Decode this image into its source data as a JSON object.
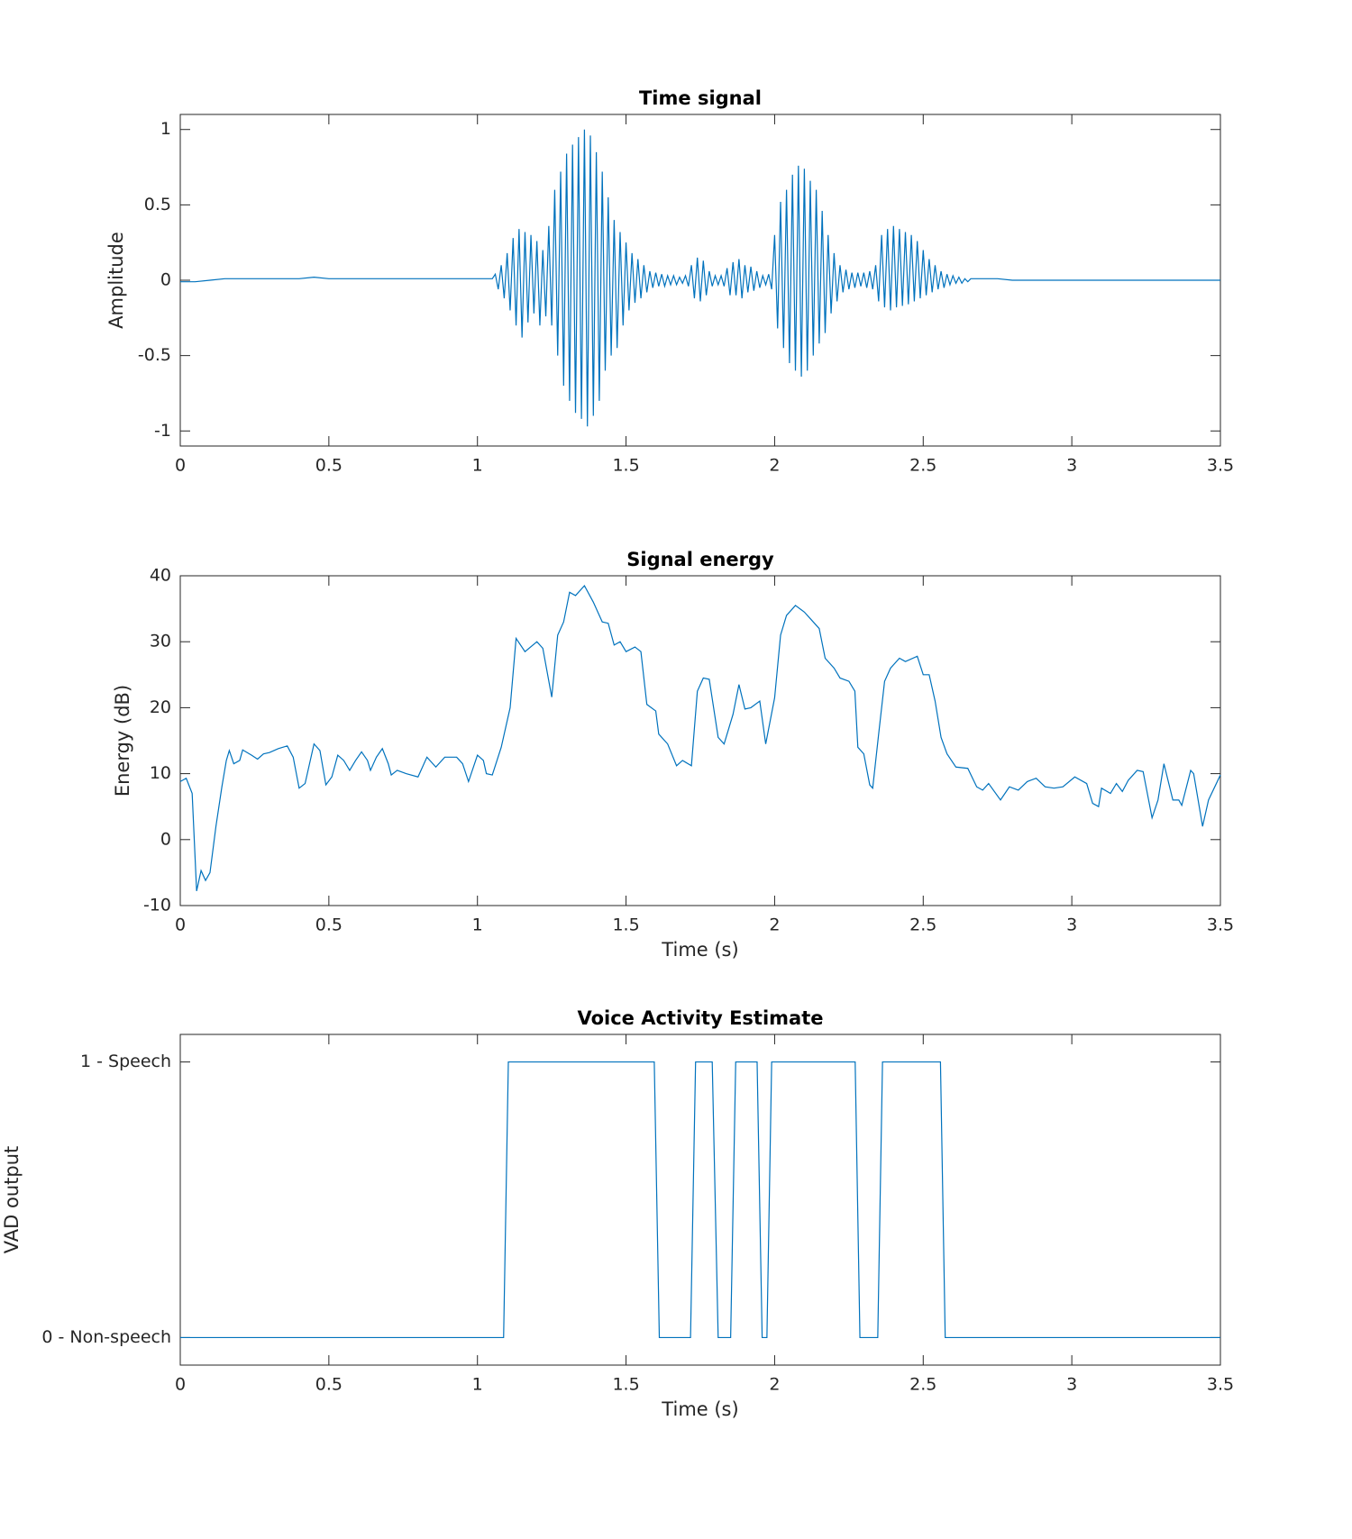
{
  "chart_data": [
    {
      "type": "line",
      "title": "Time signal",
      "ylabel": "Amplitude",
      "color": "#0072bd",
      "xlim": [
        0,
        3.5
      ],
      "xticks": [
        0,
        0.5,
        1,
        1.5,
        2,
        2.5,
        3,
        3.5
      ],
      "ylim": [
        -1.1,
        1.1
      ],
      "yticks": [
        -1,
        -0.5,
        0,
        0.5,
        1
      ],
      "x": [
        0,
        0.05,
        0.1,
        0.15,
        0.2,
        0.25,
        0.3,
        0.35,
        0.4,
        0.45,
        0.5,
        0.55,
        0.6,
        0.65,
        0.7,
        0.75,
        0.8,
        0.85,
        0.9,
        0.95,
        1,
        1.05,
        1.06,
        1.07,
        1.08,
        1.09,
        1.1,
        1.11,
        1.12,
        1.13,
        1.14,
        1.15,
        1.16,
        1.17,
        1.18,
        1.19,
        1.2,
        1.21,
        1.22,
        1.23,
        1.24,
        1.25,
        1.26,
        1.27,
        1.28,
        1.29,
        1.3,
        1.31,
        1.32,
        1.33,
        1.34,
        1.35,
        1.36,
        1.37,
        1.38,
        1.39,
        1.4,
        1.41,
        1.42,
        1.43,
        1.44,
        1.45,
        1.46,
        1.47,
        1.48,
        1.49,
        1.5,
        1.51,
        1.52,
        1.53,
        1.54,
        1.55,
        1.56,
        1.57,
        1.58,
        1.59,
        1.6,
        1.61,
        1.62,
        1.63,
        1.64,
        1.65,
        1.66,
        1.67,
        1.68,
        1.69,
        1.7,
        1.71,
        1.72,
        1.73,
        1.74,
        1.75,
        1.76,
        1.77,
        1.78,
        1.79,
        1.8,
        1.81,
        1.82,
        1.83,
        1.84,
        1.85,
        1.86,
        1.87,
        1.88,
        1.89,
        1.9,
        1.91,
        1.92,
        1.93,
        1.94,
        1.95,
        1.96,
        1.97,
        1.98,
        1.99,
        2,
        2.01,
        2.02,
        2.03,
        2.04,
        2.05,
        2.06,
        2.07,
        2.08,
        2.09,
        2.1,
        2.11,
        2.12,
        2.13,
        2.14,
        2.15,
        2.16,
        2.17,
        2.18,
        2.19,
        2.2,
        2.21,
        2.22,
        2.23,
        2.24,
        2.25,
        2.26,
        2.27,
        2.28,
        2.29,
        2.3,
        2.31,
        2.32,
        2.33,
        2.34,
        2.35,
        2.36,
        2.37,
        2.38,
        2.39,
        2.4,
        2.41,
        2.42,
        2.43,
        2.44,
        2.45,
        2.46,
        2.47,
        2.48,
        2.49,
        2.5,
        2.51,
        2.52,
        2.53,
        2.54,
        2.55,
        2.56,
        2.57,
        2.58,
        2.59,
        2.6,
        2.61,
        2.62,
        2.63,
        2.64,
        2.65,
        2.66,
        2.7,
        2.75,
        2.8,
        2.85,
        2.9,
        2.95,
        3,
        3.05,
        3.1,
        3.15,
        3.2,
        3.25,
        3.3,
        3.35,
        3.4,
        3.45,
        3.5
      ],
      "values": [
        -0.01,
        -0.01,
        0,
        0.01,
        0.01,
        0.01,
        0.01,
        0.01,
        0.01,
        0.02,
        0.01,
        0.01,
        0.01,
        0.01,
        0.01,
        0.01,
        0.01,
        0.01,
        0.01,
        0.01,
        0.01,
        0.01,
        0.04,
        -0.06,
        0.1,
        -0.12,
        0.18,
        -0.2,
        0.28,
        -0.3,
        0.34,
        -0.38,
        0.32,
        -0.28,
        0.3,
        -0.22,
        0.26,
        -0.3,
        0.2,
        -0.24,
        0.36,
        -0.3,
        0.6,
        -0.5,
        0.72,
        -0.7,
        0.84,
        -0.8,
        0.9,
        -0.88,
        0.95,
        -0.92,
        1.0,
        -0.97,
        0.96,
        -0.9,
        0.85,
        -0.8,
        0.72,
        -0.6,
        0.55,
        -0.5,
        0.4,
        -0.45,
        0.32,
        -0.3,
        0.25,
        -0.2,
        0.18,
        -0.15,
        0.14,
        -0.12,
        0.1,
        -0.08,
        0.06,
        -0.05,
        0.05,
        -0.04,
        0.04,
        -0.04,
        0.03,
        -0.03,
        0.03,
        -0.03,
        0.02,
        -0.02,
        0.03,
        -0.04,
        0.1,
        -0.12,
        0.15,
        -0.14,
        0.13,
        -0.1,
        0.06,
        -0.04,
        0.03,
        -0.03,
        0.03,
        -0.04,
        0.08,
        -0.1,
        0.12,
        -0.1,
        0.14,
        -0.12,
        0.1,
        -0.08,
        0.09,
        -0.07,
        0.06,
        -0.05,
        0.03,
        -0.03,
        0.04,
        -0.06,
        0.3,
        -0.32,
        0.52,
        -0.45,
        0.6,
        -0.55,
        0.7,
        -0.6,
        0.76,
        -0.64,
        0.74,
        -0.6,
        0.66,
        -0.5,
        0.6,
        -0.42,
        0.46,
        -0.35,
        0.3,
        -0.22,
        0.18,
        -0.14,
        0.1,
        -0.08,
        0.07,
        -0.06,
        0.05,
        -0.05,
        0.05,
        -0.04,
        0.05,
        -0.05,
        0.06,
        -0.06,
        0.1,
        -0.14,
        0.3,
        -0.18,
        0.34,
        -0.2,
        0.36,
        -0.18,
        0.34,
        -0.17,
        0.32,
        -0.16,
        0.3,
        -0.14,
        0.26,
        -0.12,
        0.2,
        -0.1,
        0.14,
        -0.08,
        0.1,
        -0.06,
        0.06,
        -0.05,
        0.04,
        -0.03,
        0.03,
        -0.02,
        0.02,
        -0.02,
        0.01,
        -0.01,
        0.01,
        0.01,
        0.01,
        0,
        0,
        0,
        0,
        0,
        0,
        0,
        0,
        0,
        0,
        0,
        0,
        0,
        0,
        0
      ]
    },
    {
      "type": "line",
      "title": "Signal energy",
      "xlabel": "Time (s)",
      "ylabel": "Energy (dB)",
      "color": "#0072bd",
      "xlim": [
        0,
        3.5
      ],
      "xticks": [
        0,
        0.5,
        1,
        1.5,
        2,
        2.5,
        3,
        3.5
      ],
      "ylim": [
        -10,
        40
      ],
      "yticks": [
        -10,
        0,
        10,
        20,
        30,
        40
      ],
      "x": [
        0,
        0.02,
        0.04,
        0.055,
        0.07,
        0.085,
        0.1,
        0.12,
        0.14,
        0.155,
        0.165,
        0.18,
        0.2,
        0.21,
        0.24,
        0.26,
        0.28,
        0.3,
        0.33,
        0.36,
        0.38,
        0.4,
        0.42,
        0.45,
        0.47,
        0.49,
        0.51,
        0.53,
        0.55,
        0.57,
        0.59,
        0.61,
        0.63,
        0.64,
        0.66,
        0.68,
        0.7,
        0.71,
        0.73,
        0.76,
        0.8,
        0.83,
        0.86,
        0.89,
        0.93,
        0.95,
        0.97,
        1,
        1.02,
        1.03,
        1.05,
        1.08,
        1.11,
        1.13,
        1.16,
        1.2,
        1.22,
        1.25,
        1.27,
        1.29,
        1.31,
        1.33,
        1.36,
        1.39,
        1.42,
        1.44,
        1.46,
        1.48,
        1.5,
        1.53,
        1.55,
        1.57,
        1.6,
        1.61,
        1.64,
        1.67,
        1.69,
        1.72,
        1.74,
        1.76,
        1.78,
        1.81,
        1.83,
        1.86,
        1.88,
        1.9,
        1.92,
        1.95,
        1.97,
        2,
        2.02,
        2.04,
        2.07,
        2.1,
        2.12,
        2.15,
        2.17,
        2.2,
        2.22,
        2.25,
        2.27,
        2.28,
        2.3,
        2.32,
        2.33,
        2.35,
        2.37,
        2.39,
        2.42,
        2.44,
        2.48,
        2.5,
        2.52,
        2.54,
        2.56,
        2.58,
        2.61,
        2.65,
        2.68,
        2.7,
        2.72,
        2.76,
        2.79,
        2.82,
        2.85,
        2.88,
        2.91,
        2.94,
        2.97,
        3.01,
        3.05,
        3.07,
        3.09,
        3.1,
        3.13,
        3.15,
        3.17,
        3.19,
        3.22,
        3.24,
        3.27,
        3.29,
        3.31,
        3.34,
        3.36,
        3.37,
        3.4,
        3.41,
        3.44,
        3.46,
        3.5
      ],
      "values": [
        8.8,
        9.3,
        7,
        -7.8,
        -4.7,
        -6.2,
        -5,
        2,
        8,
        12,
        13.5,
        11.5,
        12,
        13.6,
        12.8,
        12.2,
        13,
        13.2,
        13.8,
        14.2,
        12.5,
        7.8,
        8.5,
        14.5,
        13.5,
        8.3,
        9.5,
        12.8,
        12,
        10.5,
        12,
        13.3,
        12,
        10.5,
        12.5,
        13.8,
        11.5,
        9.8,
        10.5,
        10,
        9.5,
        12.5,
        11,
        12.5,
        12.5,
        11.5,
        8.8,
        12.8,
        12,
        10,
        9.8,
        14,
        20,
        30.5,
        28.5,
        30,
        29,
        21.6,
        31,
        33,
        37.5,
        37,
        38.5,
        36,
        33,
        32.8,
        29.5,
        30,
        28.5,
        29.2,
        28.5,
        20.5,
        19.5,
        16,
        14.5,
        11.2,
        12,
        11.2,
        22.5,
        24.5,
        24.3,
        15.5,
        14.5,
        19,
        23.5,
        19.8,
        20,
        21,
        14.5,
        21.5,
        31,
        34,
        35.5,
        34.5,
        33.5,
        32,
        27.5,
        26,
        24.5,
        24,
        22.5,
        14,
        13,
        8.3,
        7.8,
        16,
        24,
        26,
        27.5,
        27,
        27.8,
        25,
        25,
        21,
        15.5,
        13,
        11,
        10.8,
        8,
        7.5,
        8.5,
        6,
        8,
        7.5,
        8.8,
        9.3,
        8,
        7.8,
        8,
        9.5,
        8.5,
        5.5,
        5,
        7.8,
        7,
        8.5,
        7.3,
        9,
        10.5,
        10.3,
        3.3,
        6,
        11.5,
        6,
        6,
        5.2,
        10.5,
        10,
        2,
        6,
        9.8
      ]
    },
    {
      "type": "line",
      "title": "Voice Activity Estimate",
      "xlabel": "Time (s)",
      "ylabel": "VAD output",
      "color": "#0072bd",
      "xlim": [
        0,
        3.5
      ],
      "xticks": [
        0,
        0.5,
        1,
        1.5,
        2,
        2.5,
        3,
        3.5
      ],
      "ylim": [
        -0.1,
        1.1
      ],
      "yticks": [
        {
          "value": 0,
          "label": "0 - Non-speech"
        },
        {
          "value": 1,
          "label": "1 - Speech"
        }
      ],
      "x": [
        0,
        1.088,
        1.104,
        1.595,
        1.612,
        1.717,
        1.734,
        1.79,
        1.81,
        1.852,
        1.869,
        1.941,
        1.958,
        1.974,
        1.99,
        2.271,
        2.287,
        2.347,
        2.363,
        2.558,
        2.574,
        3.5
      ],
      "values": [
        0,
        0,
        1,
        1,
        0,
        0,
        1,
        1,
        0,
        0,
        1,
        1,
        0,
        0,
        1,
        1,
        0,
        0,
        1,
        1,
        0,
        0
      ]
    }
  ]
}
